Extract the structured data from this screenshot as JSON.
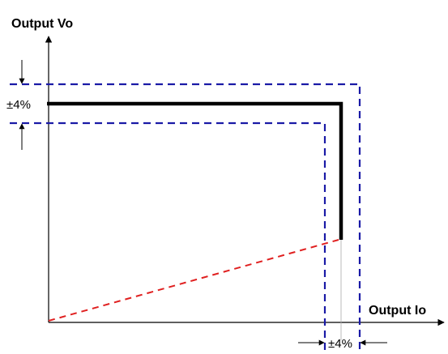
{
  "labels": {
    "y_axis": "Output Vo",
    "x_axis": "Output Io",
    "voltage_tolerance": "±4%",
    "current_tolerance": "±4%"
  },
  "colors": {
    "curve": "#000000",
    "tolerance_band": "#1a1aa6",
    "foldback_line": "#e02020",
    "axes": "#000000"
  }
}
